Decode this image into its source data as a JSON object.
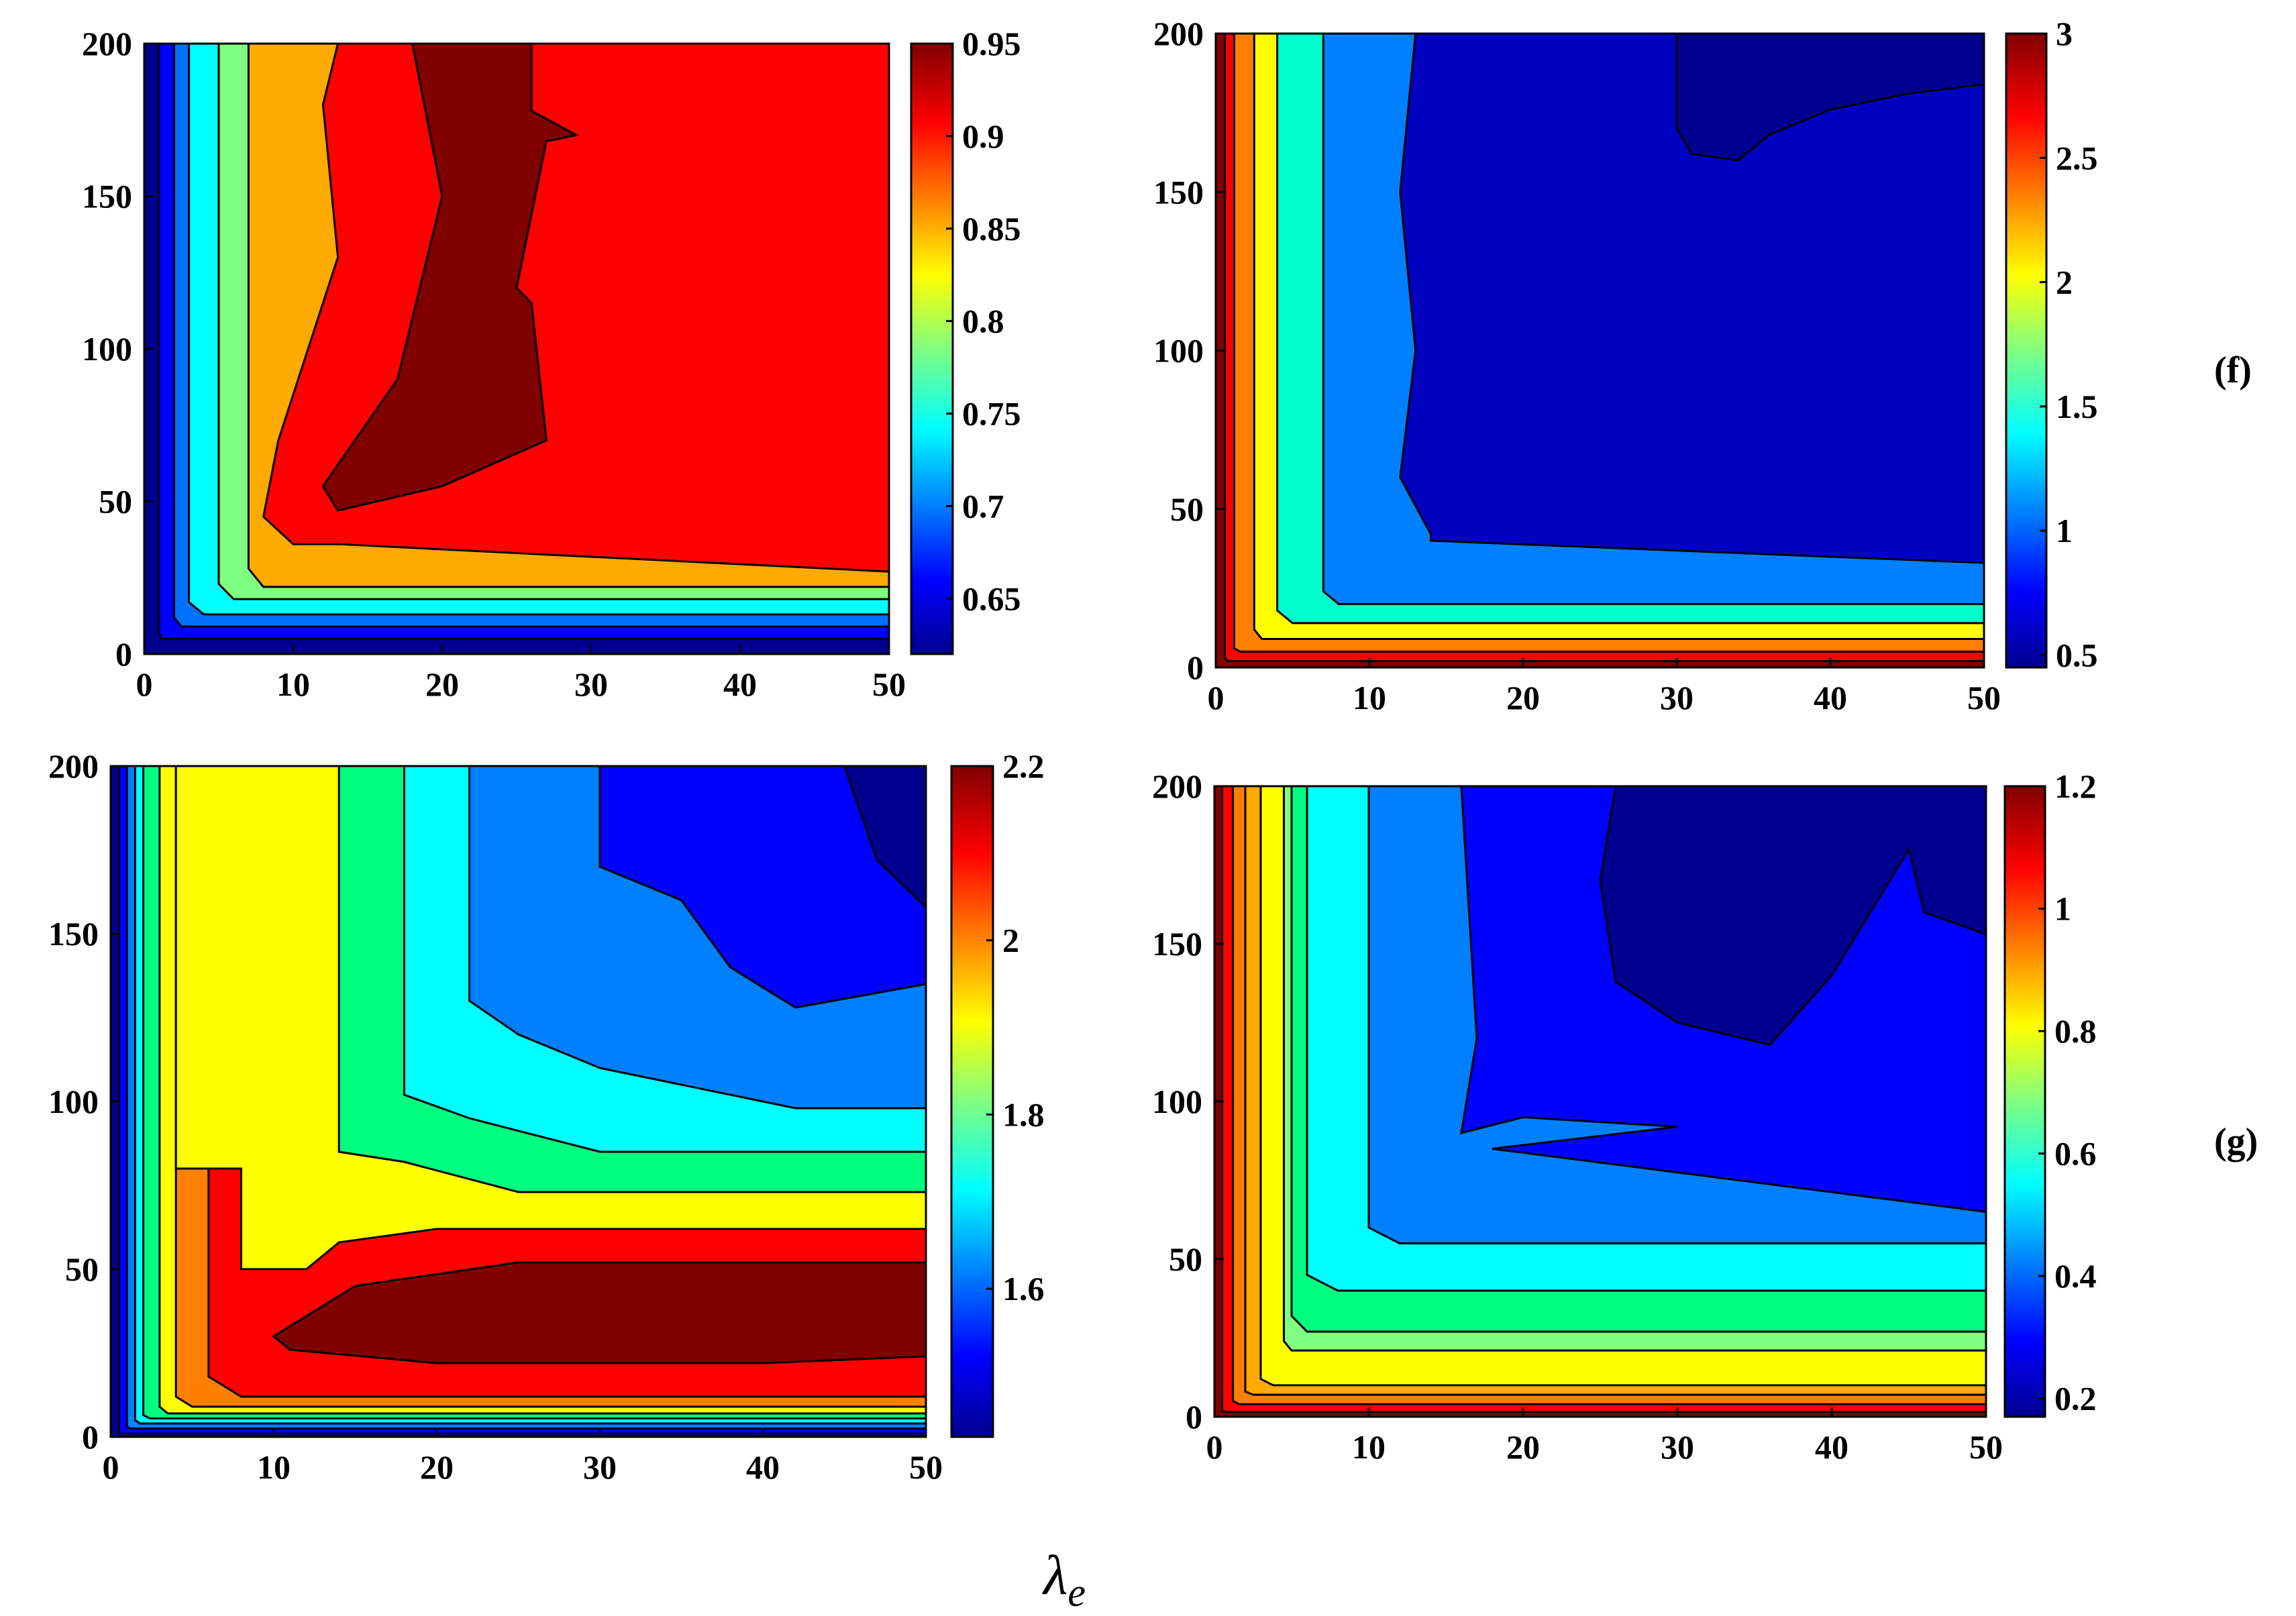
{
  "figure": {
    "panel_labels": [
      "(f)",
      "(g)"
    ],
    "shared_xlabel_symbol": "λ",
    "shared_xlabel_sub": "e"
  },
  "chart_data": [
    {
      "type": "contourf",
      "name": "top-left",
      "xlim": [
        0,
        50
      ],
      "ylim": [
        0,
        200
      ],
      "xticks": [
        "0",
        "10",
        "20",
        "30",
        "40",
        "50"
      ],
      "yticks": [
        "0",
        "50",
        "100",
        "150",
        "200"
      ],
      "colorbar": {
        "range": [
          0.62,
          0.95
        ],
        "ticks": [
          "0.65",
          "0.7",
          "0.75",
          "0.8",
          "0.85",
          "0.9",
          "0.95"
        ]
      },
      "levels": [
        {
          "color": "#00008f",
          "ex": 0,
          "ey": 0,
          "ax": 0,
          "ay": 0,
          "top_edge": []
        },
        {
          "color": "#0000ff",
          "ex": 1,
          "ey": 5,
          "ax": 1.2,
          "ay": 7,
          "top_edge": []
        },
        {
          "color": "#0070ff",
          "ex": 2,
          "ey": 9,
          "ax": 2.5,
          "ay": 12,
          "top_edge": []
        },
        {
          "color": "#00ffff",
          "ex": 3,
          "ey": 13,
          "ax": 4,
          "ay": 17,
          "top_edge": []
        },
        {
          "color": "#80ff80",
          "ex": 5,
          "ey": 18,
          "ax": 6,
          "ay": 23,
          "top_edge": []
        },
        {
          "color": "#ffaa00",
          "ex": 7,
          "ey": 22,
          "ax": 8,
          "ay": 28,
          "top_edge": []
        },
        {
          "color": "#ff0000",
          "ex": 10,
          "ey": 27,
          "ax": 13,
          "ay": 36,
          "top_edge": [
            [
              13,
              200
            ],
            [
              12,
              180
            ],
            [
              13,
              130
            ],
            [
              9,
              70
            ],
            [
              8,
              45
            ],
            [
              10,
              36
            ]
          ]
        },
        {
          "color": "#800000",
          "island": [
            [
              18,
              200
            ],
            [
              26,
              200
            ],
            [
              26,
              178
            ],
            [
              29,
              170
            ],
            [
              27,
              168
            ],
            [
              25,
              120
            ],
            [
              26,
              115
            ],
            [
              27,
              70
            ],
            [
              20,
              55
            ],
            [
              13,
              47
            ],
            [
              12,
              55
            ],
            [
              17,
              90
            ],
            [
              20,
              150
            ],
            [
              18,
              200
            ]
          ]
        }
      ]
    },
    {
      "type": "contourf",
      "name": "top-right",
      "xlim": [
        0,
        50
      ],
      "ylim": [
        0,
        200
      ],
      "xticks": [
        "0",
        "10",
        "20",
        "30",
        "40",
        "50"
      ],
      "yticks": [
        "0",
        "50",
        "100",
        "150",
        "200"
      ],
      "colorbar": {
        "range": [
          0.45,
          3.0
        ],
        "ticks": [
          "0.5",
          "1",
          "1.5",
          "2",
          "2.5",
          "3"
        ]
      },
      "levels": [
        {
          "color": "#800000",
          "ex": 0,
          "ey": 0,
          "ax": 0,
          "ay": 0,
          "top_edge": []
        },
        {
          "color": "#ff0000",
          "ex": 0.6,
          "ey": 2,
          "ax": 0.8,
          "ay": 3,
          "top_edge": []
        },
        {
          "color": "#ff8000",
          "ex": 1.2,
          "ey": 5,
          "ax": 1.6,
          "ay": 6,
          "top_edge": []
        },
        {
          "color": "#ffff00",
          "ex": 2.5,
          "ey": 9,
          "ax": 3,
          "ay": 12,
          "top_edge": []
        },
        {
          "color": "#00ffcc",
          "ex": 4,
          "ey": 14,
          "ax": 5,
          "ay": 18,
          "top_edge": []
        },
        {
          "color": "#0080ff",
          "ex": 7,
          "ey": 20,
          "ax": 8,
          "ay": 24,
          "top_edge": []
        },
        {
          "color": "#0000c0",
          "ex": 13,
          "ey": 33,
          "ax": 14,
          "ay": 40,
          "top_edge": [
            [
              13,
              200
            ],
            [
              12,
              150
            ],
            [
              13,
              100
            ],
            [
              12,
              60
            ],
            [
              14,
              42
            ]
          ]
        },
        {
          "color": "#000090",
          "island": [
            [
              30,
              200
            ],
            [
              50,
              200
            ],
            [
              50,
              184
            ],
            [
              45,
              181
            ],
            [
              40,
              176
            ],
            [
              36,
              168
            ],
            [
              34,
              160
            ],
            [
              31,
              162
            ],
            [
              30,
              170
            ],
            [
              30,
              200
            ]
          ]
        }
      ]
    },
    {
      "type": "contourf",
      "name": "bottom-left",
      "xlim": [
        0,
        50
      ],
      "ylim": [
        0,
        200
      ],
      "xticks": [
        "0",
        "10",
        "20",
        "30",
        "40",
        "50"
      ],
      "yticks": [
        "0",
        "50",
        "100",
        "150",
        "200"
      ],
      "colorbar": {
        "range": [
          1.43,
          2.2
        ],
        "ticks": [
          "1.6",
          "1.8",
          "2",
          "2.2"
        ]
      },
      "levels": [
        {
          "color": "#00008f",
          "ex": 0,
          "ey": 0,
          "ax": 0,
          "ay": 0,
          "top_edge": []
        },
        {
          "color": "#0000ff",
          "ex": 0.5,
          "ey": 1,
          "ax": 0.6,
          "ay": 1.5,
          "top_edge": []
        },
        {
          "color": "#0080ff",
          "ex": 1,
          "ey": 2.5,
          "ax": 1.2,
          "ay": 3,
          "top_edge": []
        },
        {
          "color": "#00ffff",
          "ex": 1.5,
          "ey": 4,
          "ax": 1.8,
          "ay": 5,
          "top_edge": []
        },
        {
          "color": "#00ff80",
          "ex": 2,
          "ey": 5.5,
          "ax": 2.4,
          "ay": 6.5,
          "top_edge": []
        },
        {
          "color": "#ffff00",
          "ex": 3,
          "ey": 7,
          "ax": 3.5,
          "ay": 9,
          "top_edge": []
        },
        {
          "color": "#ff8000",
          "ex": 4,
          "ey": 9,
          "ax": 5,
          "ay": 12,
          "top_edge": []
        },
        {
          "color": "#ff0000",
          "ex": 6,
          "ey": 12,
          "ax": 8,
          "ay": 18,
          "top_edge": []
        },
        {
          "color": "#800000",
          "island": [
            [
              10,
              30
            ],
            [
              15,
              45
            ],
            [
              25,
              52
            ],
            [
              50,
              52
            ],
            [
              50,
              24
            ],
            [
              40,
              22
            ],
            [
              20,
              22
            ],
            [
              11,
              26
            ]
          ]
        }
      ],
      "upper_regions": [
        {
          "color": "#ffff00",
          "path": [
            [
              4,
              200
            ],
            [
              50,
              200
            ],
            [
              50,
              62
            ],
            [
              20,
              62
            ],
            [
              14,
              58
            ],
            [
              12,
              50
            ],
            [
              8,
              50
            ],
            [
              8,
              80
            ],
            [
              4,
              80
            ]
          ]
        },
        {
          "color": "#00ff80",
          "path": [
            [
              14,
              200
            ],
            [
              50,
              200
            ],
            [
              50,
              73
            ],
            [
              25,
              73
            ],
            [
              18,
              82
            ],
            [
              14,
              85
            ]
          ]
        },
        {
          "color": "#00ffff",
          "path": [
            [
              18,
              200
            ],
            [
              50,
              200
            ],
            [
              50,
              85
            ],
            [
              30,
              85
            ],
            [
              22,
              95
            ],
            [
              18,
              102
            ]
          ]
        },
        {
          "color": "#0080ff",
          "path": [
            [
              22,
              200
            ],
            [
              50,
              200
            ],
            [
              50,
              98
            ],
            [
              42,
              98
            ],
            [
              30,
              110
            ],
            [
              25,
              120
            ],
            [
              22,
              130
            ]
          ]
        },
        {
          "color": "#0000ff",
          "path": [
            [
              30,
              200
            ],
            [
              50,
              200
            ],
            [
              50,
              135
            ],
            [
              42,
              128
            ],
            [
              38,
              140
            ],
            [
              35,
              160
            ],
            [
              30,
              170
            ]
          ]
        },
        {
          "color": "#00008f",
          "path": [
            [
              45,
              200
            ],
            [
              50,
              200
            ],
            [
              50,
              158
            ],
            [
              47,
              172
            ]
          ]
        }
      ]
    },
    {
      "type": "contourf",
      "name": "bottom-right",
      "xlim": [
        0,
        50
      ],
      "ylim": [
        0,
        200
      ],
      "xticks": [
        "0",
        "10",
        "20",
        "30",
        "40",
        "50"
      ],
      "yticks": [
        "0",
        "50",
        "100",
        "150",
        "200"
      ],
      "colorbar": {
        "range": [
          0.17,
          1.2
        ],
        "ticks": [
          "0.2",
          "0.4",
          "0.6",
          "0.8",
          "1",
          "1.2"
        ]
      },
      "levels": [
        {
          "color": "#800000",
          "ex": 0,
          "ey": 0,
          "ax": 0,
          "ay": 0,
          "top_edge": []
        },
        {
          "color": "#ff0000",
          "ex": 0.5,
          "ey": 1.5,
          "ax": 0.7,
          "ay": 2,
          "top_edge": []
        },
        {
          "color": "#ff8000",
          "ex": 1.2,
          "ey": 4,
          "ax": 1.6,
          "ay": 5,
          "top_edge": []
        },
        {
          "color": "#ffaa00",
          "ex": 2,
          "ey": 7,
          "ax": 2.5,
          "ay": 8,
          "top_edge": []
        },
        {
          "color": "#ffff00",
          "ex": 3,
          "ey": 10,
          "ax": 3.8,
          "ay": 12,
          "top_edge": []
        },
        {
          "color": "#80ff80",
          "ex": 4.5,
          "ey": 21,
          "ax": 5,
          "ay": 24,
          "top_edge": []
        },
        {
          "color": "#00ff80",
          "ex": 5,
          "ey": 27,
          "ax": 6,
          "ay": 32,
          "top_edge": []
        },
        {
          "color": "#00ffff",
          "ex": 6,
          "ey": 40,
          "ax": 8,
          "ay": 45,
          "top_edge": []
        },
        {
          "color": "#0080ff",
          "ex": 10,
          "ey": 55,
          "ax": 12,
          "ay": 60,
          "top_edge": []
        },
        {
          "color": "#0000ff",
          "ex": 16,
          "ey": 65,
          "ax": 18,
          "ay": 85,
          "top_edge": [
            [
              16,
              200
            ],
            [
              17,
              120
            ],
            [
              16,
              90
            ],
            [
              20,
              95
            ],
            [
              30,
              92
            ]
          ]
        },
        {
          "color": "#000090",
          "island": [
            [
              26,
              200
            ],
            [
              50,
              200
            ],
            [
              50,
              153
            ],
            [
              46,
              160
            ],
            [
              45,
              180
            ],
            [
              40,
              140
            ],
            [
              36,
              118
            ],
            [
              30,
              125
            ],
            [
              26,
              138
            ],
            [
              25,
              170
            ]
          ]
        }
      ]
    }
  ]
}
